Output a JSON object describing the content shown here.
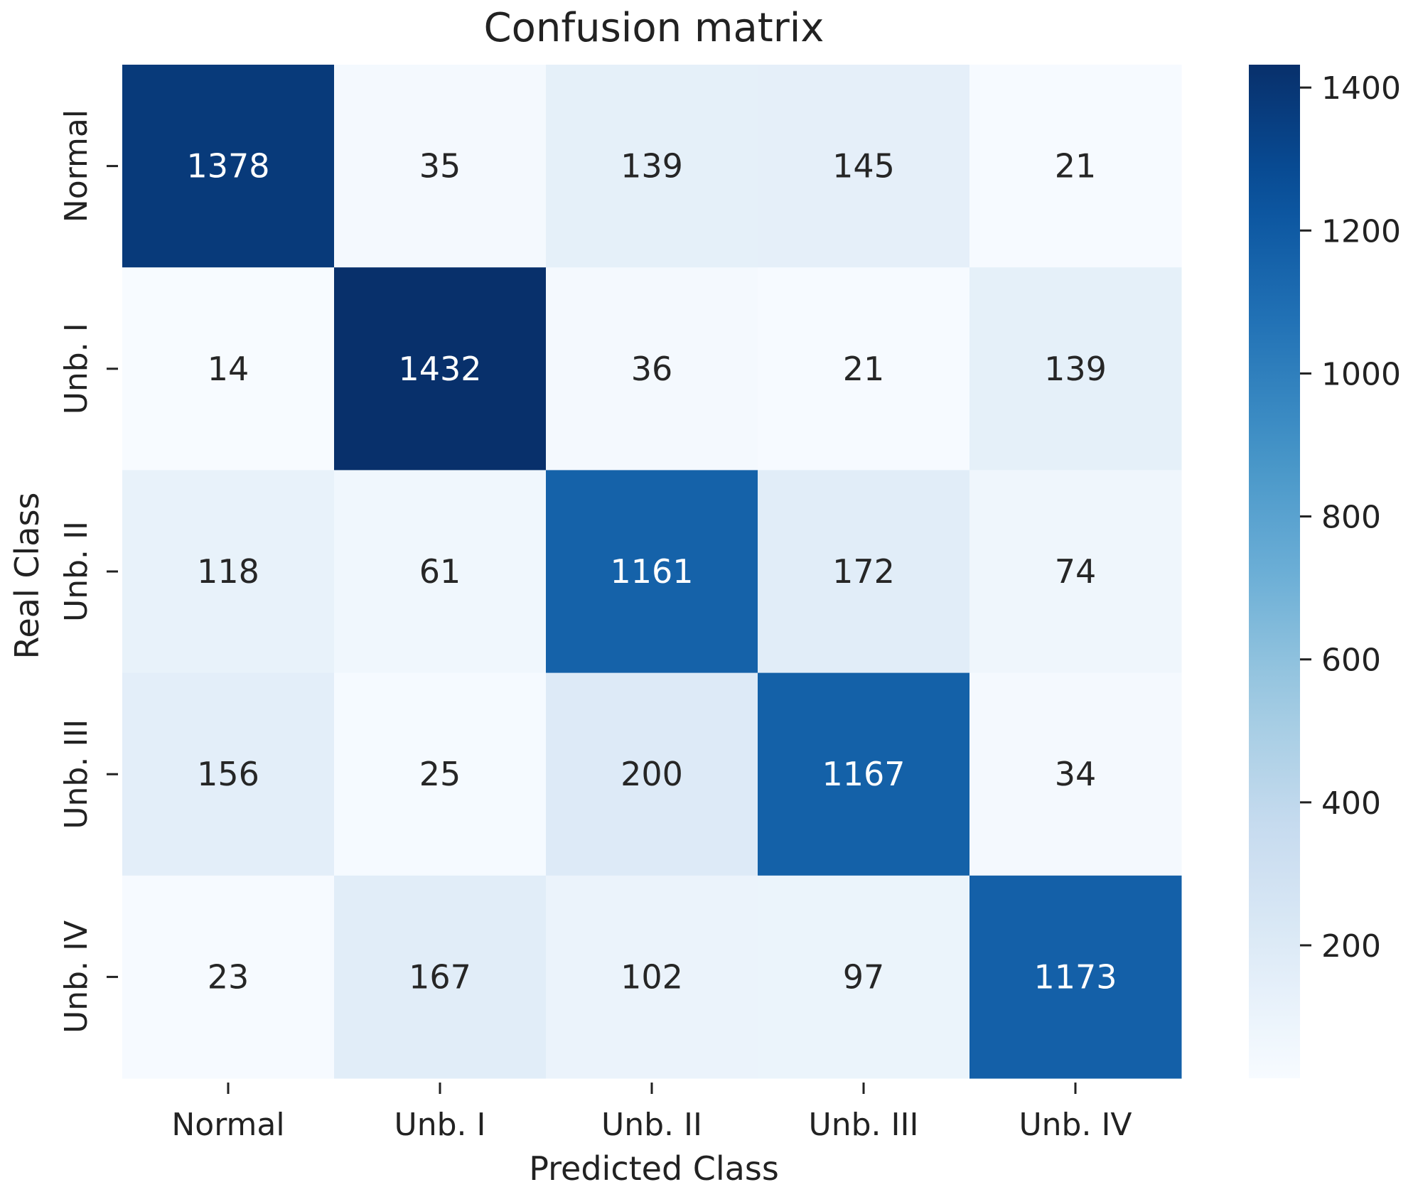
{
  "chart_data": {
    "type": "heatmap",
    "title": "Confusion matrix",
    "xlabel": "Predicted Class",
    "ylabel": "Real Class",
    "x_categories": [
      "Normal",
      "Unb. I",
      "Unb. II",
      "Unb. III",
      "Unb. IV"
    ],
    "y_categories": [
      "Normal",
      "Unb. I",
      "Unb. II",
      "Unb. III",
      "Unb. IV"
    ],
    "values": [
      [
        1378,
        35,
        139,
        145,
        21
      ],
      [
        14,
        1432,
        36,
        21,
        139
      ],
      [
        118,
        61,
        1161,
        172,
        74
      ],
      [
        156,
        25,
        200,
        1167,
        34
      ],
      [
        23,
        167,
        102,
        97,
        1173
      ]
    ],
    "colorbar": {
      "colormap": "Blues",
      "vmin": 14,
      "vmax": 1432,
      "ticks": [
        200,
        400,
        600,
        800,
        1000,
        1200,
        1400
      ]
    },
    "grid": false
  }
}
